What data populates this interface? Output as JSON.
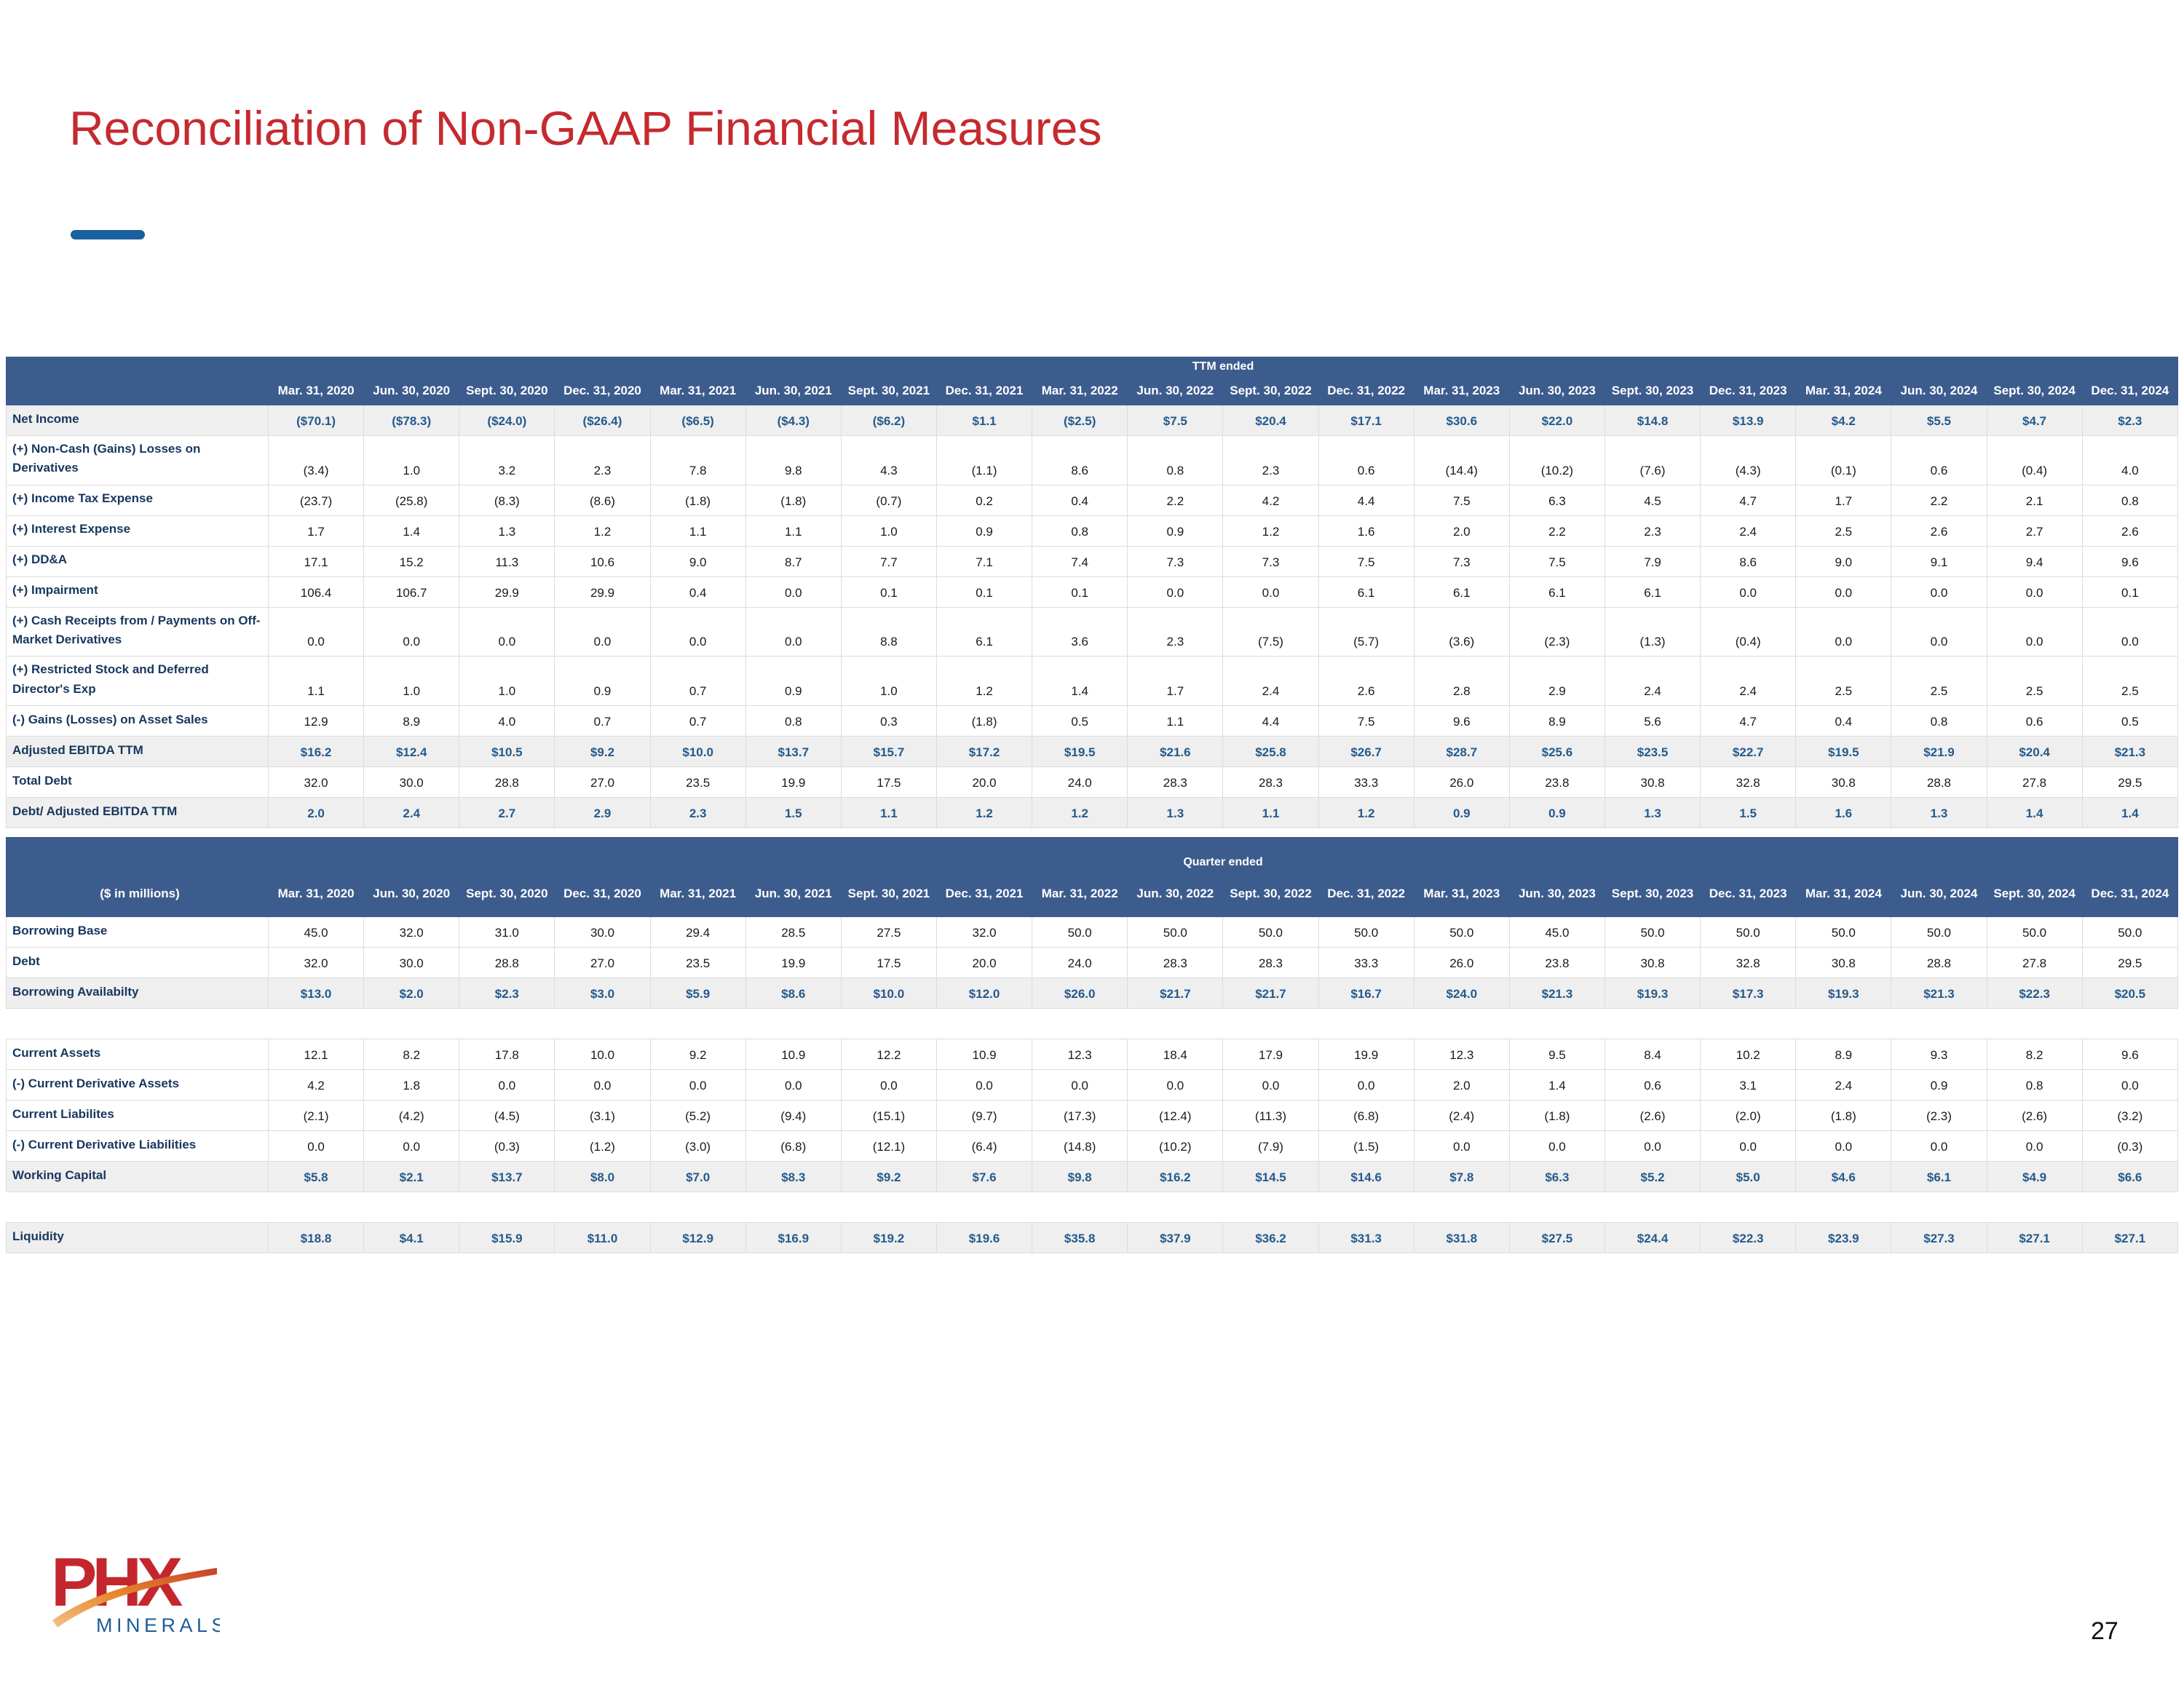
{
  "title": "Reconciliation of Non-GAAP Financial Measures",
  "page_number": "27",
  "logo": {
    "brand": "PHX",
    "subtext": "MINERALS"
  },
  "colors": {
    "title_red": "#C52A2F",
    "accent_blue": "#1A5F9E",
    "header_bar_blue": "#3D5C8E",
    "row_label_navy": "#17375E",
    "subtotal_text_blue": "#245A8D",
    "subtotal_row_gray": "#EFEFEF",
    "logo_red": "#C4262E",
    "logo_orange": "#E78A2E",
    "logo_blue": "#1F5C99"
  },
  "columns": [
    "Mar. 31, 2020",
    "Jun. 30, 2020",
    "Sept. 30, 2020",
    "Dec. 31, 2020",
    "Mar. 31, 2021",
    "Jun. 30, 2021",
    "Sept. 30, 2021",
    "Dec. 31, 2021",
    "Mar. 31, 2022",
    "Jun. 30, 2022",
    "Sept. 30, 2022",
    "Dec. 31, 2022",
    "Mar. 31, 2023",
    "Jun. 30, 2023",
    "Sept. 30, 2023",
    "Dec. 31, 2023",
    "Mar. 31, 2024",
    "Jun. 30, 2024",
    "Sept. 30, 2024",
    "Dec. 31, 2024"
  ],
  "table1": {
    "group_header": "TTM ended",
    "corner_label": "",
    "rows": [
      {
        "label": "Net Income",
        "style": "subtotal",
        "values": [
          "($70.1)",
          "($78.3)",
          "($24.0)",
          "($26.4)",
          "($6.5)",
          "($4.3)",
          "($6.2)",
          "$1.1",
          "($2.5)",
          "$7.5",
          "$20.4",
          "$17.1",
          "$30.6",
          "$22.0",
          "$14.8",
          "$13.9",
          "$4.2",
          "$5.5",
          "$4.7",
          "$2.3"
        ]
      },
      {
        "label": "(+) Non-Cash (Gains) Losses on Derivatives",
        "style": "normal",
        "values": [
          "(3.4)",
          "1.0",
          "3.2",
          "2.3",
          "7.8",
          "9.8",
          "4.3",
          "(1.1)",
          "8.6",
          "0.8",
          "2.3",
          "0.6",
          "(14.4)",
          "(10.2)",
          "(7.6)",
          "(4.3)",
          "(0.1)",
          "0.6",
          "(0.4)",
          "4.0"
        ]
      },
      {
        "label": "(+) Income Tax Expense",
        "style": "normal",
        "values": [
          "(23.7)",
          "(25.8)",
          "(8.3)",
          "(8.6)",
          "(1.8)",
          "(1.8)",
          "(0.7)",
          "0.2",
          "0.4",
          "2.2",
          "4.2",
          "4.4",
          "7.5",
          "6.3",
          "4.5",
          "4.7",
          "1.7",
          "2.2",
          "2.1",
          "0.8"
        ]
      },
      {
        "label": "(+) Interest Expense",
        "style": "normal",
        "values": [
          "1.7",
          "1.4",
          "1.3",
          "1.2",
          "1.1",
          "1.1",
          "1.0",
          "0.9",
          "0.8",
          "0.9",
          "1.2",
          "1.6",
          "2.0",
          "2.2",
          "2.3",
          "2.4",
          "2.5",
          "2.6",
          "2.7",
          "2.6"
        ]
      },
      {
        "label": "(+) DD&A",
        "style": "normal",
        "values": [
          "17.1",
          "15.2",
          "11.3",
          "10.6",
          "9.0",
          "8.7",
          "7.7",
          "7.1",
          "7.4",
          "7.3",
          "7.3",
          "7.5",
          "7.3",
          "7.5",
          "7.9",
          "8.6",
          "9.0",
          "9.1",
          "9.4",
          "9.6"
        ]
      },
      {
        "label": "(+) Impairment",
        "style": "normal",
        "values": [
          "106.4",
          "106.7",
          "29.9",
          "29.9",
          "0.4",
          "0.0",
          "0.1",
          "0.1",
          "0.1",
          "0.0",
          "0.0",
          "6.1",
          "6.1",
          "6.1",
          "6.1",
          "0.0",
          "0.0",
          "0.0",
          "0.0",
          "0.1"
        ]
      },
      {
        "label": "(+) Cash Receipts from / Payments on Off-Market Derivatives",
        "style": "normal",
        "values": [
          "0.0",
          "0.0",
          "0.0",
          "0.0",
          "0.0",
          "0.0",
          "8.8",
          "6.1",
          "3.6",
          "2.3",
          "(7.5)",
          "(5.7)",
          "(3.6)",
          "(2.3)",
          "(1.3)",
          "(0.4)",
          "0.0",
          "0.0",
          "0.0",
          "0.0"
        ]
      },
      {
        "label": "(+) Restricted Stock and Deferred Director's Exp",
        "style": "normal",
        "values": [
          "1.1",
          "1.0",
          "1.0",
          "0.9",
          "0.7",
          "0.9",
          "1.0",
          "1.2",
          "1.4",
          "1.7",
          "2.4",
          "2.6",
          "2.8",
          "2.9",
          "2.4",
          "2.4",
          "2.5",
          "2.5",
          "2.5",
          "2.5"
        ]
      },
      {
        "label": "(-) Gains (Losses) on Asset Sales",
        "style": "normal",
        "values": [
          "12.9",
          "8.9",
          "4.0",
          "0.7",
          "0.7",
          "0.8",
          "0.3",
          "(1.8)",
          "0.5",
          "1.1",
          "4.4",
          "7.5",
          "9.6",
          "8.9",
          "5.6",
          "4.7",
          "0.4",
          "0.8",
          "0.6",
          "0.5"
        ]
      },
      {
        "label": "Adjusted EBITDA TTM",
        "style": "subtotal",
        "values": [
          "$16.2",
          "$12.4",
          "$10.5",
          "$9.2",
          "$10.0",
          "$13.7",
          "$15.7",
          "$17.2",
          "$19.5",
          "$21.6",
          "$25.8",
          "$26.7",
          "$28.7",
          "$25.6",
          "$23.5",
          "$22.7",
          "$19.5",
          "$21.9",
          "$20.4",
          "$21.3"
        ]
      },
      {
        "label": "Total Debt",
        "style": "normal",
        "values": [
          "32.0",
          "30.0",
          "28.8",
          "27.0",
          "23.5",
          "19.9",
          "17.5",
          "20.0",
          "24.0",
          "28.3",
          "28.3",
          "33.3",
          "26.0",
          "23.8",
          "30.8",
          "32.8",
          "30.8",
          "28.8",
          "27.8",
          "29.5"
        ]
      },
      {
        "label": "Debt/ Adjusted EBITDA TTM",
        "style": "subtotal",
        "values": [
          "2.0",
          "2.4",
          "2.7",
          "2.9",
          "2.3",
          "1.5",
          "1.1",
          "1.2",
          "1.2",
          "1.3",
          "1.1",
          "1.2",
          "0.9",
          "0.9",
          "1.3",
          "1.5",
          "1.6",
          "1.3",
          "1.4",
          "1.4"
        ]
      }
    ]
  },
  "table2": {
    "group_header": "Quarter ended",
    "corner_label": "($ in millions)",
    "rows": [
      {
        "label": "Borrowing Base",
        "style": "normal",
        "values": [
          "45.0",
          "32.0",
          "31.0",
          "30.0",
          "29.4",
          "28.5",
          "27.5",
          "32.0",
          "50.0",
          "50.0",
          "50.0",
          "50.0",
          "50.0",
          "45.0",
          "50.0",
          "50.0",
          "50.0",
          "50.0",
          "50.0",
          "50.0"
        ]
      },
      {
        "label": "Debt",
        "style": "normal",
        "values": [
          "32.0",
          "30.0",
          "28.8",
          "27.0",
          "23.5",
          "19.9",
          "17.5",
          "20.0",
          "24.0",
          "28.3",
          "28.3",
          "33.3",
          "26.0",
          "23.8",
          "30.8",
          "32.8",
          "30.8",
          "28.8",
          "27.8",
          "29.5"
        ]
      },
      {
        "label": "Borrowing Availabilty",
        "style": "subtotal",
        "values": [
          "$13.0",
          "$2.0",
          "$2.3",
          "$3.0",
          "$5.9",
          "$8.6",
          "$10.0",
          "$12.0",
          "$26.0",
          "$21.7",
          "$21.7",
          "$16.7",
          "$24.0",
          "$21.3",
          "$19.3",
          "$17.3",
          "$19.3",
          "$21.3",
          "$22.3",
          "$20.5"
        ]
      },
      {
        "style": "spacer"
      },
      {
        "label": "Current Assets",
        "style": "normal",
        "values": [
          "12.1",
          "8.2",
          "17.8",
          "10.0",
          "9.2",
          "10.9",
          "12.2",
          "10.9",
          "12.3",
          "18.4",
          "17.9",
          "19.9",
          "12.3",
          "9.5",
          "8.4",
          "10.2",
          "8.9",
          "9.3",
          "8.2",
          "9.6"
        ]
      },
      {
        "label": "(-) Current Derivative Assets",
        "style": "normal",
        "values": [
          "4.2",
          "1.8",
          "0.0",
          "0.0",
          "0.0",
          "0.0",
          "0.0",
          "0.0",
          "0.0",
          "0.0",
          "0.0",
          "0.0",
          "2.0",
          "1.4",
          "0.6",
          "3.1",
          "2.4",
          "0.9",
          "0.8",
          "0.0"
        ]
      },
      {
        "label": "Current Liabilites",
        "style": "normal",
        "values": [
          "(2.1)",
          "(4.2)",
          "(4.5)",
          "(3.1)",
          "(5.2)",
          "(9.4)",
          "(15.1)",
          "(9.7)",
          "(17.3)",
          "(12.4)",
          "(11.3)",
          "(6.8)",
          "(2.4)",
          "(1.8)",
          "(2.6)",
          "(2.0)",
          "(1.8)",
          "(2.3)",
          "(2.6)",
          "(3.2)"
        ]
      },
      {
        "label": "(-) Current Derivative Liabilities",
        "style": "normal",
        "values": [
          "0.0",
          "0.0",
          "(0.3)",
          "(1.2)",
          "(3.0)",
          "(6.8)",
          "(12.1)",
          "(6.4)",
          "(14.8)",
          "(10.2)",
          "(7.9)",
          "(1.5)",
          "0.0",
          "0.0",
          "0.0",
          "0.0",
          "0.0",
          "0.0",
          "0.0",
          "(0.3)"
        ]
      },
      {
        "label": "Working Capital",
        "style": "subtotal",
        "values": [
          "$5.8",
          "$2.1",
          "$13.7",
          "$8.0",
          "$7.0",
          "$8.3",
          "$9.2",
          "$7.6",
          "$9.8",
          "$16.2",
          "$14.5",
          "$14.6",
          "$7.8",
          "$6.3",
          "$5.2",
          "$5.0",
          "$4.6",
          "$6.1",
          "$4.9",
          "$6.6"
        ]
      },
      {
        "style": "spacer"
      },
      {
        "label": "Liquidity",
        "style": "subtotal",
        "values": [
          "$18.8",
          "$4.1",
          "$15.9",
          "$11.0",
          "$12.9",
          "$16.9",
          "$19.2",
          "$19.6",
          "$35.8",
          "$37.9",
          "$36.2",
          "$31.3",
          "$31.8",
          "$27.5",
          "$24.4",
          "$22.3",
          "$23.9",
          "$27.3",
          "$27.1",
          "$27.1"
        ]
      }
    ]
  }
}
